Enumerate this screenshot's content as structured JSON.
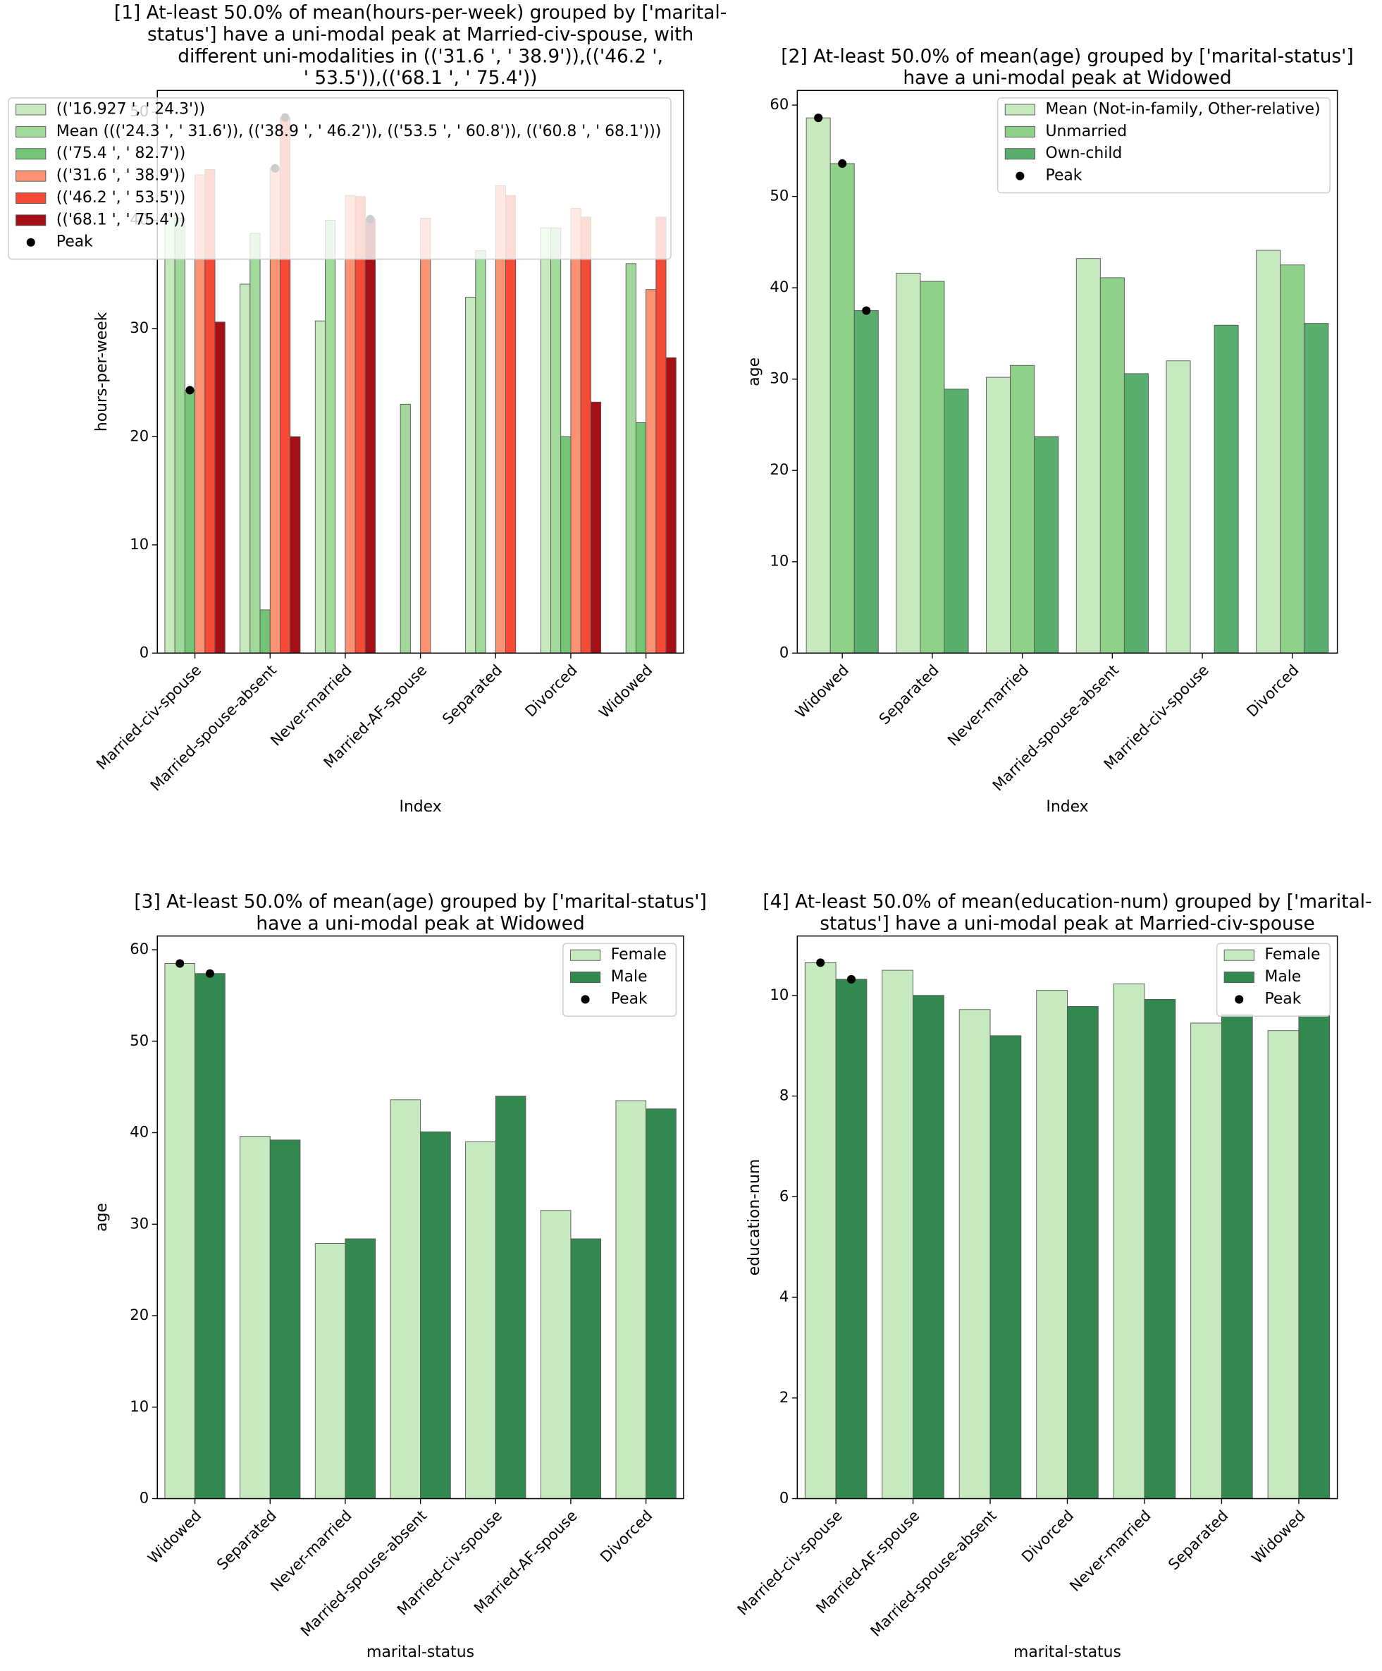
{
  "chart_data": [
    {
      "type": "bar",
      "title": [
        "[1] At-least 50.0% of mean(hours-per-week) grouped by ['marital-",
        "status'] have a uni-modal peak at Married-civ-spouse, with",
        "different uni-modalities in (('31.6 ', ' 38.9')),(('46.2 ',",
        "' 53.5')),(('68.1 ', ' 75.4'))"
      ],
      "xlabel": "Index",
      "ylabel": "hours-per-week",
      "categories": [
        "Married-civ-spouse",
        "Married-spouse-absent",
        "Never-married",
        "Married-AF-spouse",
        "Separated",
        "Divorced",
        "Widowed"
      ],
      "series": [
        {
          "name": "(('16.927 ', ' 24.3'))",
          "color": "#c7e9c0",
          "values": [
            40.5,
            34.1,
            30.7,
            null,
            32.9,
            39.3,
            null
          ],
          "peaks": [
            false,
            false,
            false,
            false,
            false,
            false,
            false
          ]
        },
        {
          "name": "Mean ((('24.3 ', ' 31.6')), (('38.9 ', ' 46.2')), (('53.5 ', ' 60.8')), (('60.8 ', ' 68.1')))",
          "color": "#a1d99b",
          "values": [
            40.2,
            38.8,
            40.0,
            23.0,
            37.2,
            39.3,
            36.0
          ],
          "peaks": [
            false,
            false,
            false,
            false,
            false,
            false,
            false
          ]
        },
        {
          "name": "(('75.4 ', ' 82.7'))",
          "color": "#74c476",
          "values": [
            24.3,
            4.0,
            null,
            null,
            null,
            20.0,
            21.3
          ],
          "peaks": [
            true,
            false,
            false,
            false,
            false,
            false,
            false
          ]
        },
        {
          "name": "(('31.6 ', ' 38.9'))",
          "color": "#fc9272",
          "values": [
            44.2,
            44.8,
            42.3,
            40.2,
            43.2,
            41.1,
            33.6
          ],
          "peaks": [
            false,
            true,
            false,
            false,
            false,
            false,
            false
          ]
        },
        {
          "name": "(('46.2 ', ' 53.5'))",
          "color": "#f44a36",
          "values": [
            44.7,
            49.5,
            42.2,
            null,
            42.3,
            40.3,
            40.3
          ],
          "peaks": [
            false,
            true,
            false,
            false,
            false,
            false,
            false
          ]
        },
        {
          "name": "(('68.1 ', ' 75.4'))",
          "color": "#a50f15",
          "values": [
            30.6,
            20.0,
            40.1,
            null,
            null,
            23.2,
            27.3
          ],
          "peaks": [
            false,
            false,
            true,
            false,
            false,
            false,
            false
          ]
        }
      ],
      "peak_label": "Peak",
      "ylim": [
        0,
        52
      ],
      "yticks": [
        0,
        10,
        20,
        30,
        40,
        50
      ],
      "legend_loc": "upper left"
    },
    {
      "type": "bar",
      "title": [
        "[2] At-least 50.0% of mean(age) grouped by ['marital-status']",
        "have a uni-modal peak at Widowed"
      ],
      "xlabel": "Index",
      "ylabel": "age",
      "categories": [
        "Widowed",
        "Separated",
        "Never-married",
        "Married-spouse-absent",
        "Married-civ-spouse",
        "Divorced"
      ],
      "series": [
        {
          "name": "Mean (Not-in-family, Other-relative)",
          "color": "#c7e9c0",
          "values": [
            58.6,
            41.6,
            30.2,
            43.2,
            32.0,
            44.1
          ],
          "peaks": [
            true,
            false,
            false,
            false,
            false,
            false
          ]
        },
        {
          "name": "Unmarried",
          "color": "#8fd08a",
          "values": [
            53.6,
            40.7,
            31.5,
            41.1,
            null,
            42.5
          ],
          "peaks": [
            true,
            false,
            false,
            false,
            false,
            false
          ]
        },
        {
          "name": "Own-child",
          "color": "#5aae6e",
          "values": [
            37.5,
            28.9,
            23.7,
            30.6,
            35.9,
            36.1
          ],
          "peaks": [
            true,
            false,
            false,
            false,
            false,
            false
          ]
        }
      ],
      "peak_label": "Peak",
      "ylim": [
        0,
        61.6
      ],
      "yticks": [
        0,
        10,
        20,
        30,
        40,
        50,
        60
      ],
      "legend_loc": "upper right"
    },
    {
      "type": "bar",
      "title": [
        "[3] At-least 50.0% of mean(age) grouped by ['marital-status']",
        "have a uni-modal peak at Widowed"
      ],
      "xlabel": "marital-status",
      "ylabel": "age",
      "categories": [
        "Widowed",
        "Separated",
        "Never-married",
        "Married-spouse-absent",
        "Married-civ-spouse",
        "Married-AF-spouse",
        "Divorced"
      ],
      "series": [
        {
          "name": "Female",
          "color": "#c7e9c0",
          "values": [
            58.5,
            39.6,
            27.9,
            43.6,
            39.0,
            31.5,
            43.5
          ],
          "peaks": [
            true,
            false,
            false,
            false,
            false,
            false,
            false
          ]
        },
        {
          "name": "Male",
          "color": "#33884f",
          "values": [
            57.4,
            39.2,
            28.4,
            40.1,
            44.0,
            28.4,
            42.6
          ],
          "peaks": [
            true,
            false,
            false,
            false,
            false,
            false,
            false
          ]
        }
      ],
      "peak_label": "Peak",
      "ylim": [
        0,
        61.5
      ],
      "yticks": [
        0,
        10,
        20,
        30,
        40,
        50,
        60
      ],
      "legend_loc": "upper right"
    },
    {
      "type": "bar",
      "title": [
        "[4] At-least 50.0% of mean(education-num) grouped by ['marital-",
        "status'] have a uni-modal peak at Married-civ-spouse"
      ],
      "xlabel": "marital-status",
      "ylabel": "education-num",
      "categories": [
        "Married-civ-spouse",
        "Married-AF-spouse",
        "Married-spouse-absent",
        "Divorced",
        "Never-married",
        "Separated",
        "Widowed"
      ],
      "series": [
        {
          "name": "Female",
          "color": "#c7e9c0",
          "values": [
            10.65,
            10.5,
            9.72,
            10.1,
            10.23,
            9.45,
            9.3
          ],
          "peaks": [
            true,
            false,
            false,
            false,
            false,
            false,
            false
          ]
        },
        {
          "name": "Male",
          "color": "#33884f",
          "values": [
            10.32,
            10.0,
            9.2,
            9.78,
            9.92,
            9.62,
            9.6
          ],
          "peaks": [
            true,
            false,
            false,
            false,
            false,
            false,
            false
          ]
        }
      ],
      "peak_label": "Peak",
      "ylim": [
        0,
        11.18
      ],
      "yticks": [
        0,
        2,
        4,
        6,
        8,
        10
      ],
      "legend_loc": "upper right"
    }
  ]
}
